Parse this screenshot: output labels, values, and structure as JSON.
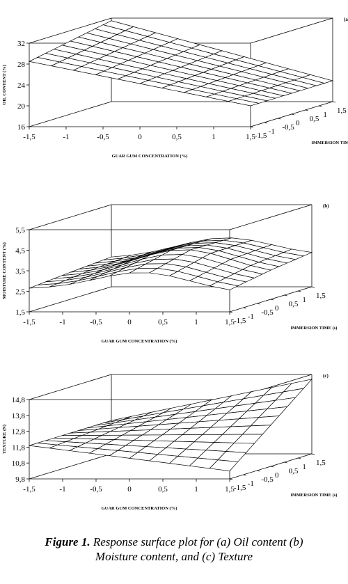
{
  "chart_data": [
    {
      "type": "surface",
      "panel_label": "(a)",
      "xlabel": "GUAR GUM CONCENTRATION (%)",
      "ylabel": "IMMERSION TIME (s)",
      "zlabel": "OIL CONTENT (%)",
      "x_ticks": [
        "-1,5",
        "-1",
        "-0,5",
        "0",
        "0,5",
        "1",
        "1,5"
      ],
      "y_ticks": [
        "-1,5",
        "-1",
        "-0,5",
        "0",
        "0,5",
        "1",
        "1,5"
      ],
      "z_ticks": [
        "16",
        "20",
        "24",
        "28",
        "32"
      ],
      "xlim": [
        -1.5,
        1.5
      ],
      "ylim": [
        -1.5,
        1.5
      ],
      "zlim": [
        16,
        32
      ],
      "surface_corners": {
        "x_-1.5_y_-1.5": 28.5,
        "x_1.5_y_-1.5": 20,
        "x_-1.5_y_1.5": 31.5,
        "x_1.5_y_1.5": 20
      },
      "grid_lines": 11
    },
    {
      "type": "surface",
      "panel_label": "(b)",
      "xlabel": "GUAR GUM CONCENTRATION (%)",
      "ylabel": "IMMERSION TIME (s)",
      "zlabel": "MOISTURE CONTENT (%)",
      "x_ticks": [
        "-1,5",
        "-1",
        "-0,5",
        "0",
        "0,5",
        "1",
        "1,5"
      ],
      "y_ticks": [
        "-1,5",
        "-1",
        "-0,5",
        "0",
        "0,5",
        "1",
        "1,5"
      ],
      "z_ticks": [
        "1,5",
        "2,5",
        "3,5",
        "4,5",
        "5,5"
      ],
      "xlim": [
        -1.5,
        1.5
      ],
      "ylim": [
        -1.5,
        1.5
      ],
      "zlim": [
        1.5,
        5.5
      ],
      "surface_corners": {
        "x_-1.5_y_-1.5": 2.6,
        "x_1.5_y_-1.5": 2.4,
        "x_-1.5_y_1.5": 2.9,
        "x_1.5_y_1.5": 3.0
      },
      "surface_peak": {
        "x": 0.2,
        "y": 0,
        "z": 3.9
      },
      "grid_lines": 11
    },
    {
      "type": "surface",
      "panel_label": "(c)",
      "xlabel": "GUAR GUM CONCENTRATION (%)",
      "ylabel": "IMMERSION TIME (s)",
      "zlabel": "TEXTURE (N)",
      "x_ticks": [
        "-1,5",
        "-1",
        "-0,5",
        "0",
        "0,5",
        "1",
        "1,5"
      ],
      "y_ticks": [
        "-1,5",
        "-1",
        "-0,5",
        "0",
        "0,5",
        "1",
        "1,5"
      ],
      "z_ticks": [
        "9,8",
        "10,8",
        "11,8",
        "12,8",
        "13,8",
        "14,8"
      ],
      "xlim": [
        -1.5,
        1.5
      ],
      "ylim": [
        -1.5,
        1.5
      ],
      "zlim": [
        9.8,
        14.8
      ],
      "surface_corners": {
        "x_-1.5_y_-1.5": 11.9,
        "x_1.5_y_-1.5": 10.3,
        "x_-1.5_y_1.5": 11.9,
        "x_1.5_y_1.5": 14.5
      },
      "grid_lines": 11
    }
  ],
  "caption": {
    "figure_label": "Figure 1.",
    "line1_rest": " Response surface plot for (a) Oil content (b)",
    "line2": "Moisture content, and (c) Texture"
  }
}
